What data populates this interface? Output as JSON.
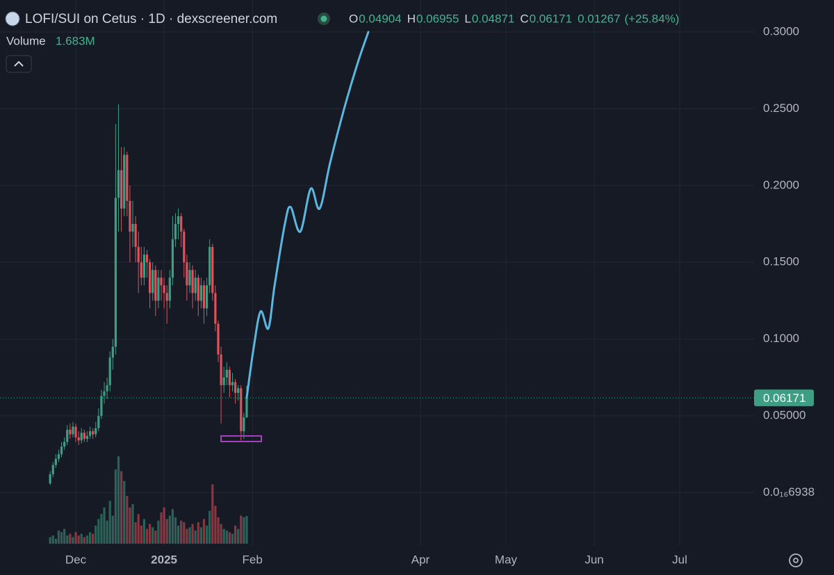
{
  "chart_data": {
    "type": "candlestick",
    "title": "LOFI/SUI on Cetus · 1D · dexscreener.com",
    "ohlc_labels": [
      "O",
      "H",
      "L",
      "C"
    ],
    "change": 0.01267,
    "change_pct": 25.84,
    "change_pct_label": "(+25.84%)",
    "volume_title": "Volume",
    "volume_last_label": "1.683M",
    "up_color": "#3d9e84",
    "down_color": "#e0525a",
    "x": [
      0,
      1,
      2,
      3,
      4,
      5,
      6,
      7,
      8,
      9,
      10,
      11,
      12,
      13,
      14,
      15,
      16,
      17,
      18,
      19,
      20,
      21,
      22,
      23,
      24,
      25,
      26,
      27,
      28,
      29,
      30,
      31,
      32,
      33,
      34,
      35,
      36,
      37,
      38,
      39,
      40,
      41,
      42,
      43,
      44,
      45,
      46,
      47,
      48,
      49,
      50,
      51,
      52,
      53,
      54,
      55,
      56,
      57,
      58,
      59,
      60,
      61,
      62,
      63,
      64,
      65,
      66,
      67,
      68,
      69
    ],
    "open": [
      0.006,
      0.012,
      0.018,
      0.022,
      0.025,
      0.03,
      0.033,
      0.041,
      0.038,
      0.043,
      0.036,
      0.034,
      0.039,
      0.035,
      0.037,
      0.04,
      0.038,
      0.042,
      0.05,
      0.063,
      0.066,
      0.07,
      0.088,
      0.095,
      0.192,
      0.21,
      0.185,
      0.22,
      0.19,
      0.17,
      0.175,
      0.16,
      0.15,
      0.14,
      0.155,
      0.15,
      0.13,
      0.145,
      0.125,
      0.14,
      0.135,
      0.13,
      0.125,
      0.14,
      0.165,
      0.175,
      0.18,
      0.17,
      0.15,
      0.135,
      0.145,
      0.13,
      0.14,
      0.125,
      0.135,
      0.12,
      0.135,
      0.16,
      0.13,
      0.11,
      0.09,
      0.07,
      0.075,
      0.08,
      0.07,
      0.072,
      0.065,
      0.068,
      0.04,
      0.04904
    ],
    "high": [
      0.014,
      0.02,
      0.025,
      0.028,
      0.033,
      0.036,
      0.044,
      0.045,
      0.046,
      0.045,
      0.04,
      0.042,
      0.041,
      0.04,
      0.043,
      0.042,
      0.046,
      0.055,
      0.067,
      0.072,
      0.075,
      0.092,
      0.1,
      0.24,
      0.253,
      0.225,
      0.225,
      0.222,
      0.2,
      0.19,
      0.18,
      0.17,
      0.16,
      0.16,
      0.158,
      0.152,
      0.15,
      0.148,
      0.145,
      0.145,
      0.14,
      0.135,
      0.145,
      0.18,
      0.182,
      0.185,
      0.182,
      0.172,
      0.155,
      0.15,
      0.148,
      0.145,
      0.142,
      0.14,
      0.138,
      0.14,
      0.165,
      0.162,
      0.135,
      0.112,
      0.095,
      0.082,
      0.085,
      0.082,
      0.078,
      0.074,
      0.07,
      0.07,
      0.052,
      0.06955
    ],
    "low": [
      0.005,
      0.01,
      0.016,
      0.02,
      0.023,
      0.028,
      0.031,
      0.035,
      0.036,
      0.033,
      0.031,
      0.032,
      0.033,
      0.033,
      0.035,
      0.035,
      0.036,
      0.04,
      0.048,
      0.058,
      0.061,
      0.066,
      0.08,
      0.09,
      0.17,
      0.17,
      0.18,
      0.18,
      0.15,
      0.16,
      0.15,
      0.13,
      0.135,
      0.135,
      0.14,
      0.12,
      0.125,
      0.115,
      0.12,
      0.125,
      0.12,
      0.11,
      0.12,
      0.135,
      0.16,
      0.165,
      0.16,
      0.14,
      0.125,
      0.13,
      0.12,
      0.125,
      0.115,
      0.12,
      0.11,
      0.115,
      0.13,
      0.125,
      0.105,
      0.085,
      0.045,
      0.065,
      0.07,
      0.062,
      0.066,
      0.058,
      0.06,
      0.034,
      0.035,
      0.04871
    ],
    "close": [
      0.012,
      0.018,
      0.022,
      0.025,
      0.03,
      0.033,
      0.041,
      0.038,
      0.043,
      0.036,
      0.034,
      0.039,
      0.035,
      0.037,
      0.04,
      0.038,
      0.042,
      0.05,
      0.063,
      0.066,
      0.07,
      0.088,
      0.095,
      0.192,
      0.21,
      0.185,
      0.22,
      0.19,
      0.17,
      0.175,
      0.16,
      0.15,
      0.14,
      0.155,
      0.15,
      0.13,
      0.145,
      0.125,
      0.14,
      0.135,
      0.13,
      0.125,
      0.14,
      0.165,
      0.175,
      0.18,
      0.17,
      0.15,
      0.135,
      0.145,
      0.13,
      0.14,
      0.125,
      0.135,
      0.12,
      0.135,
      0.16,
      0.13,
      0.11,
      0.09,
      0.07,
      0.075,
      0.08,
      0.07,
      0.072,
      0.065,
      0.068,
      0.04,
      0.04904,
      0.06171
    ],
    "volume": [
      400000,
      500000,
      300000,
      800000,
      700000,
      900000,
      500000,
      600000,
      400000,
      700000,
      500000,
      600000,
      400000,
      500000,
      700000,
      600000,
      1100000,
      1500000,
      1800000,
      2200000,
      1400000,
      2600000,
      1700000,
      4500000,
      5300000,
      4400000,
      3800000,
      2900000,
      2200000,
      2400000,
      1300000,
      1800000,
      1100000,
      1500000,
      900000,
      1200000,
      1000000,
      800000,
      1400000,
      1900000,
      2200000,
      1500000,
      1700000,
      2100000,
      1600000,
      1100000,
      1400000,
      1300000,
      900000,
      1000000,
      1200000,
      800000,
      1300000,
      1000000,
      1500000,
      1100000,
      2000000,
      3600000,
      2300000,
      1600000,
      1200000,
      900000,
      800000,
      700000,
      600000,
      1100000,
      900000,
      1700000,
      1600000,
      1683000
    ],
    "volume_lim": [
      0,
      7000000
    ],
    "projection": {
      "color": "#5ab8e0",
      "x": [
        69,
        71.5,
        73.9,
        76.6,
        78.8,
        82.4,
        84.4,
        87.8,
        91.5,
        94.6,
        98.3,
        103.2,
        108,
        111.7
      ],
      "values": [
        0.062,
        0.095,
        0.118,
        0.107,
        0.135,
        0.175,
        0.186,
        0.17,
        0.198,
        0.185,
        0.215,
        0.25,
        0.28,
        0.3
      ]
    },
    "xlim": [
      -17.6,
      247.1
    ],
    "xticks": [
      {
        "value": 9,
        "label": "Dec"
      },
      {
        "value": 40,
        "label": "2025"
      },
      {
        "value": 71,
        "label": "Feb"
      },
      {
        "value": 130,
        "label": "Apr"
      },
      {
        "value": 160,
        "label": "May"
      },
      {
        "value": 191,
        "label": "Jun"
      },
      {
        "value": 221,
        "label": "Jul"
      }
    ],
    "ylim": [
      -0.0346,
      0.3208
    ],
    "yticks": [
      {
        "value": 6.938e-19,
        "label": "0.0₁₆6938"
      },
      {
        "value": 0.05,
        "label": "0.05000"
      },
      {
        "value": 0.1,
        "label": "0.1000"
      },
      {
        "value": 0.15,
        "label": "0.1500"
      },
      {
        "value": 0.2,
        "label": "0.2000"
      },
      {
        "value": 0.25,
        "label": "0.2500"
      },
      {
        "value": 0.3,
        "label": "0.3000"
      }
    ],
    "grid": true
  }
}
